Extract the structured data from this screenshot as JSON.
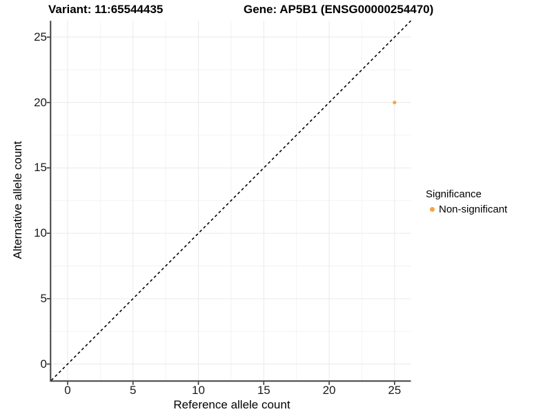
{
  "titles": {
    "variant": "Variant: 11:65544435",
    "gene": "Gene: AP5B1 (ENSG00000254470)"
  },
  "chart_data": {
    "type": "scatter",
    "title_left": "Variant: 11:65544435",
    "title_right": "Gene: AP5B1 (ENSG00000254470)",
    "xlabel": "Reference allele count",
    "ylabel": "Alternative allele count",
    "xlim": [
      -1.25,
      26.25
    ],
    "ylim": [
      -1.25,
      26.25
    ],
    "x_ticks": [
      0,
      5,
      10,
      15,
      20,
      25
    ],
    "y_ticks": [
      0,
      5,
      10,
      15,
      20,
      25
    ],
    "x_minor_ticks": [
      2.5,
      7.5,
      12.5,
      17.5,
      22.5
    ],
    "y_minor_ticks": [
      2.5,
      7.5,
      12.5,
      17.5,
      22.5
    ],
    "grid": true,
    "identity_line": {
      "style": "dashed",
      "color": "#000000",
      "from": [
        -1.25,
        -1.25
      ],
      "to": [
        26.25,
        26.25
      ]
    },
    "series": [
      {
        "name": "Non-significant",
        "color": "#F8A43C",
        "points": [
          {
            "x": 25,
            "y": 20
          }
        ]
      }
    ],
    "legend": {
      "title": "Significance",
      "position": "right",
      "items": [
        {
          "label": "Non-significant",
          "color": "#F8A43C"
        }
      ]
    }
  },
  "colors": {
    "axis_line": "#404040",
    "tick_mark": "#333333",
    "grid_major": "#e9e9e9",
    "grid_minor": "#f3f3f3",
    "background": "#ffffff"
  }
}
